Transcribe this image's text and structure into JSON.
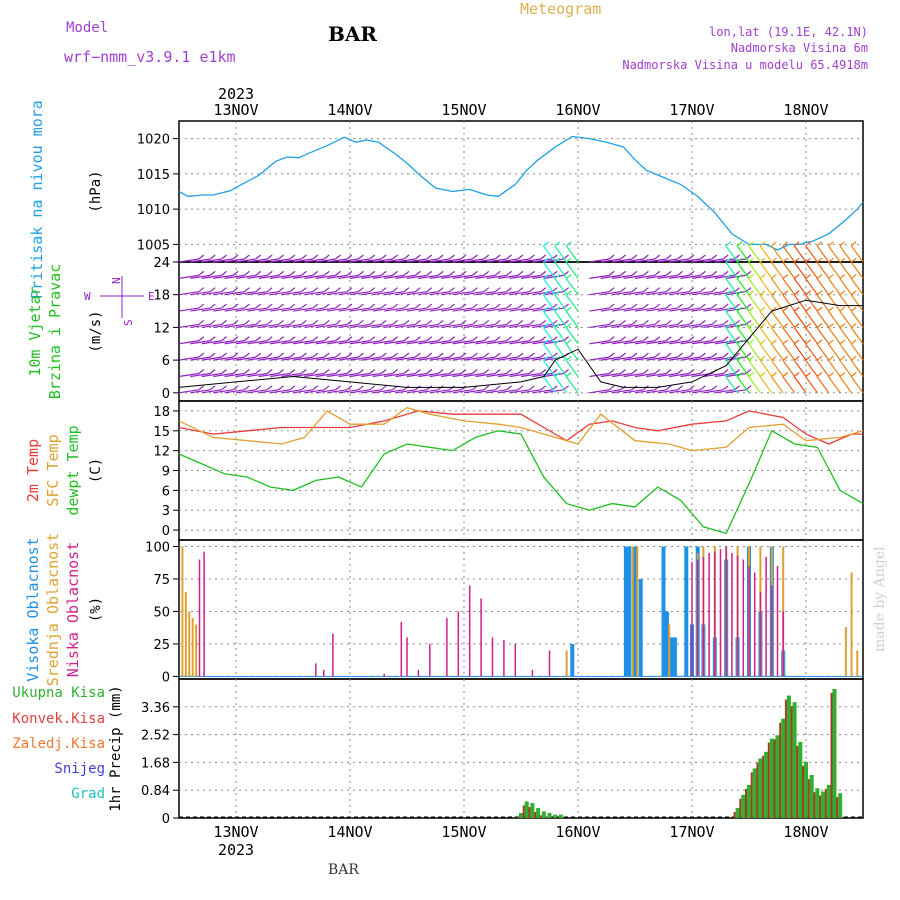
{
  "header": {
    "model_label": "Model",
    "model_name": "wrf−nmm_v3.9.1 e1km",
    "station": "BAR",
    "product": "Meteogram",
    "coords": "lon,lat (19.1E, 42.1N)",
    "elevation": "Nadmorska Visina 6m",
    "model_elevation": "Nadmorska Visina u modelu 65.4918m",
    "signature": "made by Angel",
    "footer_station": "BAR"
  },
  "colors": {
    "pressure": "#1ea0e6",
    "temp2m": "#e83c3c",
    "sfc": "#e0a030",
    "dewpt": "#20c020",
    "cloud_high": "#1e90e6",
    "cloud_mid": "#e0a030",
    "cloud_low": "#d0208a",
    "rain_total": "#30b030",
    "rain_conv": "#e04040",
    "rain_fr": "#f07830",
    "snow": "#4040d0",
    "hail": "#20c0c0",
    "wind_main": "#9020c0",
    "title_purple": "#a040d0",
    "meteogram": "#e0b050"
  },
  "time_axis": {
    "year": "2023",
    "days": [
      "13NOV",
      "14NOV",
      "15NOV",
      "16NOV",
      "17NOV",
      "18NOV"
    ],
    "day_positions": [
      0.5,
      1.5,
      2.5,
      3.5,
      4.5,
      5.5
    ],
    "x_min": 0,
    "x_max": 6
  },
  "chart_data": [
    {
      "type": "line",
      "ylabel": [
        "Pritisak na nivou mora",
        "(hPa)"
      ],
      "ylim": [
        1002.5,
        1022.5
      ],
      "yticks": [
        1005,
        1010,
        1015,
        1020
      ],
      "series": [
        {
          "x": [
            0,
            0.08,
            0.2,
            0.3,
            0.45,
            0.55,
            0.7,
            0.85,
            0.95,
            1.05,
            1.15,
            1.3,
            1.45,
            1.55,
            1.65,
            1.75,
            1.9,
            2.0,
            2.1,
            2.25,
            2.4,
            2.55,
            2.7,
            2.8,
            2.95,
            3.05,
            3.15,
            3.3,
            3.45,
            3.6,
            3.75,
            3.9,
            4.0,
            4.1,
            4.25,
            4.4,
            4.55,
            4.7,
            4.85,
            5.0,
            5.15,
            5.25,
            5.35,
            5.45,
            5.5,
            5.55,
            5.7,
            5.85,
            5.95,
            6.0
          ],
          "values": [
            1012.5,
            1011.8,
            1012.0,
            1012.0,
            1012.6,
            1013.5,
            1014.8,
            1016.8,
            1017.4,
            1017.3,
            1018.0,
            1019.0,
            1020.2,
            1019.5,
            1019.8,
            1019.5,
            1017.8,
            1016.5,
            1015.0,
            1013.0,
            1012.5,
            1012.8,
            1012.0,
            1011.8,
            1013.5,
            1015.5,
            1017.0,
            1018.8,
            1020.3,
            1020.0,
            1019.5,
            1018.8,
            1017.0,
            1015.5,
            1014.5,
            1013.5,
            1011.8,
            1009.5,
            1006.5,
            1005.0,
            1005.0,
            1004.2,
            1005.0,
            1005.0,
            1005.3,
            1005.4,
            1006.5,
            1008.5,
            1010.0,
            1011.0
          ]
        }
      ]
    },
    {
      "type": "scatter",
      "ylabel": [
        "10m Vjetar",
        "Brzina i Pravac",
        "(m/s)"
      ],
      "compass": [
        "N",
        "S",
        "W",
        "E"
      ],
      "ylim": [
        -1.5,
        24
      ],
      "yticks": [
        0,
        6,
        12,
        18,
        24
      ],
      "series": [
        {
          "name": "speed",
          "x": [
            0,
            0.5,
            1.0,
            1.5,
            2.0,
            2.5,
            3.0,
            3.2,
            3.3,
            3.5,
            3.7,
            3.9,
            4.2,
            4.5,
            4.8,
            5.0,
            5.2,
            5.5,
            5.8,
            6.0
          ],
          "values": [
            1,
            2,
            3,
            2,
            1,
            1,
            2,
            3,
            6,
            8,
            2,
            1,
            1,
            2,
            5,
            10,
            15,
            17,
            16,
            16
          ]
        }
      ]
    },
    {
      "type": "line",
      "ylabel": [
        "2m Temp",
        "SFC Temp",
        "dewpt Temp",
        "(C)"
      ],
      "ylim": [
        -1.5,
        19.5
      ],
      "yticks": [
        0,
        3,
        6,
        9,
        12,
        15,
        18
      ],
      "series": [
        {
          "name": "2m Temp",
          "x": [
            0,
            0.3,
            0.6,
            0.9,
            1.2,
            1.5,
            1.8,
            2.1,
            2.4,
            2.7,
            3.0,
            3.2,
            3.4,
            3.6,
            3.8,
            4.0,
            4.2,
            4.5,
            4.8,
            5.0,
            5.3,
            5.5,
            5.7,
            5.9,
            6.0
          ],
          "values": [
            15.5,
            14.5,
            15.0,
            15.5,
            15.5,
            15.5,
            16.5,
            18.0,
            17.5,
            17.5,
            17.5,
            15.5,
            13.5,
            16.0,
            16.5,
            15.5,
            15.0,
            16.0,
            16.5,
            18.0,
            17.0,
            14.5,
            13.0,
            14.5,
            14.5
          ]
        },
        {
          "name": "SFC Temp",
          "x": [
            0,
            0.3,
            0.6,
            0.9,
            1.1,
            1.3,
            1.5,
            1.8,
            2.0,
            2.2,
            2.5,
            2.8,
            3.0,
            3.2,
            3.4,
            3.5,
            3.7,
            4.0,
            4.3,
            4.5,
            4.8,
            5.0,
            5.3,
            5.5,
            5.8,
            6.0
          ],
          "values": [
            16.5,
            14.0,
            13.5,
            13.0,
            14.0,
            18.0,
            16.0,
            16.0,
            18.5,
            17.5,
            16.5,
            16.0,
            15.5,
            14.5,
            13.5,
            13.0,
            17.5,
            13.5,
            13.0,
            12.0,
            12.5,
            15.5,
            16.0,
            13.5,
            14.0,
            15.0
          ]
        },
        {
          "name": "dewpt Temp",
          "x": [
            0,
            0.2,
            0.4,
            0.6,
            0.8,
            1.0,
            1.2,
            1.4,
            1.6,
            1.8,
            2.0,
            2.2,
            2.4,
            2.6,
            2.8,
            3.0,
            3.2,
            3.4,
            3.6,
            3.8,
            4.0,
            4.2,
            4.4,
            4.6,
            4.8,
            5.0,
            5.2,
            5.4,
            5.6,
            5.8,
            6.0
          ],
          "values": [
            11.5,
            10.0,
            8.5,
            8.0,
            6.5,
            6.0,
            7.5,
            8.0,
            6.5,
            11.5,
            13.0,
            12.5,
            12.0,
            14.0,
            15.0,
            14.5,
            8.0,
            4.0,
            3.0,
            4.0,
            3.5,
            6.5,
            4.5,
            0.5,
            -0.5,
            7.0,
            15.0,
            13.0,
            12.5,
            6.0,
            4.0
          ]
        }
      ]
    },
    {
      "type": "bar",
      "ylabel": [
        "Visoka Oblacnost",
        "Srednja Oblacnost",
        "Niska Oblacnost",
        "(%)"
      ],
      "ylim": [
        -2,
        105
      ],
      "yticks": [
        0,
        25,
        50,
        75,
        100
      ],
      "series": [
        {
          "name": "Visoka Oblacnost",
          "x": [
            3.45,
            3.92,
            3.95,
            4.0,
            4.05,
            4.25,
            4.28,
            4.32,
            4.35,
            4.45,
            4.5,
            4.55,
            4.6,
            4.7,
            4.8,
            4.9,
            5.0,
            5.1,
            5.2,
            5.3
          ],
          "values": [
            25,
            100,
            100,
            100,
            75,
            100,
            50,
            30,
            30,
            100,
            40,
            100,
            40,
            30,
            90,
            30,
            100,
            50,
            100,
            20
          ]
        },
        {
          "name": "Srednja Oblacnost",
          "x": [
            0.03,
            0.06,
            0.09,
            0.12,
            0.15,
            3.4,
            3.98,
            4.02,
            4.3,
            4.55,
            4.6,
            4.7,
            4.8,
            4.9,
            5.0,
            5.1,
            5.2,
            5.3,
            5.85,
            5.9,
            5.95
          ],
          "values": [
            100,
            65,
            50,
            45,
            40,
            20,
            100,
            100,
            40,
            95,
            100,
            100,
            100,
            100,
            100,
            100,
            100,
            100,
            38,
            80,
            20
          ]
        },
        {
          "name": "Niska Oblacnost",
          "x": [
            0.18,
            0.22,
            1.2,
            1.27,
            1.35,
            1.8,
            1.95,
            2.0,
            2.1,
            2.2,
            2.35,
            2.45,
            2.55,
            2.65,
            2.75,
            2.85,
            2.95,
            3.1,
            3.25,
            4.5,
            4.55,
            4.6,
            4.65,
            4.7,
            4.75,
            4.8,
            4.85,
            4.9,
            4.95,
            5.0,
            5.05,
            5.1,
            5.15,
            5.2,
            5.25,
            5.3
          ],
          "values": [
            90,
            96,
            10,
            5,
            33,
            2,
            42,
            30,
            5,
            25,
            45,
            50,
            70,
            60,
            30,
            28,
            25,
            5,
            20,
            88,
            90,
            92,
            95,
            96,
            98,
            100,
            95,
            93,
            90,
            85,
            80,
            65,
            92,
            70,
            85,
            50
          ]
        }
      ]
    },
    {
      "type": "bar",
      "ylabel": [
        "Ukupna Kisa",
        "Konvek.Kisa",
        "Zaledj.Kisa",
        "Snijeg",
        "Grad",
        "1hr Precip (mm)"
      ],
      "ylim": [
        0,
        4.2
      ],
      "yticks": [
        0,
        0.84,
        1.68,
        2.52,
        3.36
      ],
      "series": [
        {
          "name": "Ukupna Kisa",
          "x": [
            3.0,
            3.05,
            3.1,
            3.15,
            3.2,
            3.25,
            3.3,
            3.35,
            4.9,
            4.95,
            5.0,
            5.05,
            5.1,
            5.15,
            5.2,
            5.25,
            5.3,
            5.35,
            5.4,
            5.45,
            5.5,
            5.55,
            5.6,
            5.65,
            5.7,
            5.75,
            5.8
          ],
          "values": [
            0.15,
            0.5,
            0.45,
            0.3,
            0.2,
            0.15,
            0.1,
            0.1,
            0.3,
            0.7,
            1.0,
            1.5,
            1.8,
            2.0,
            2.4,
            2.5,
            3.0,
            3.7,
            3.5,
            2.3,
            1.7,
            1.3,
            0.9,
            0.8,
            1.0,
            3.9,
            0.75
          ]
        }
      ]
    }
  ]
}
